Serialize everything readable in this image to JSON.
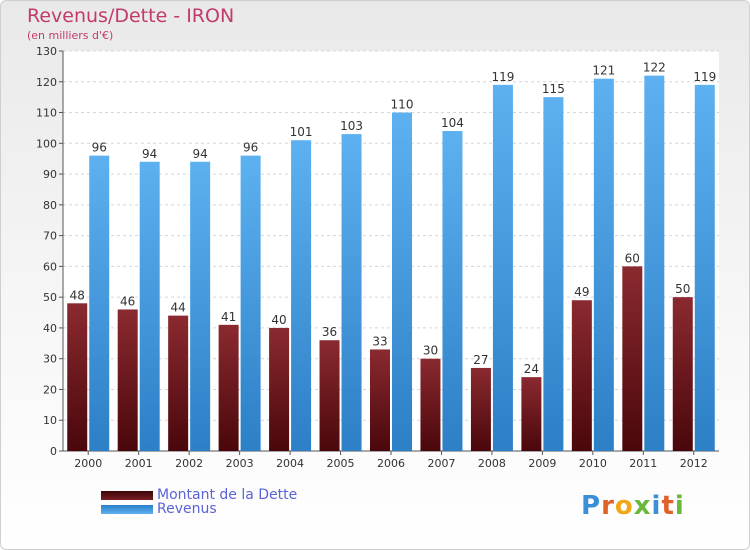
{
  "title": "Revenus/Dette - IRON",
  "subtitle": "(en milliers d'€)",
  "logo_text": "Proxiti",
  "colors": {
    "dette": "#7a1e24",
    "revenus": "#4fa3e6",
    "title": "#c23a6c",
    "legend_text": "#5a63d6"
  },
  "chart_data": {
    "type": "bar",
    "categories": [
      "2000",
      "2001",
      "2002",
      "2003",
      "2004",
      "2005",
      "2006",
      "2007",
      "2008",
      "2009",
      "2010",
      "2011",
      "2012"
    ],
    "series": [
      {
        "name": "Montant de la Dette",
        "values": [
          48,
          46,
          44,
          41,
          40,
          36,
          33,
          30,
          27,
          24,
          49,
          60,
          50
        ]
      },
      {
        "name": "Revenus",
        "values": [
          96,
          94,
          94,
          96,
          101,
          103,
          110,
          104,
          119,
          115,
          121,
          122,
          119
        ]
      }
    ],
    "ylim": [
      0,
      130
    ],
    "yticks": [
      0,
      10,
      20,
      30,
      40,
      50,
      60,
      70,
      80,
      90,
      100,
      110,
      120,
      130
    ],
    "grid": true,
    "legend_position": "bottom-left"
  }
}
